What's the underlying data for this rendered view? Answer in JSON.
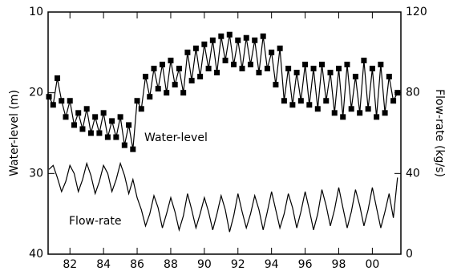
{
  "chart_data": {
    "type": "line",
    "y_label": "Water-level (m)",
    "y2_label": "Flow-rate (kg/s)",
    "annotations": [
      "Water-level",
      "Flow-rate"
    ],
    "xlim": [
      1980.7,
      2001.7
    ],
    "xticks": [
      {
        "value": 1982,
        "label": "82"
      },
      {
        "value": 1984,
        "label": "84"
      },
      {
        "value": 1986,
        "label": "86"
      },
      {
        "value": 1988,
        "label": "88"
      },
      {
        "value": 1990,
        "label": "90"
      },
      {
        "value": 1992,
        "label": "92"
      },
      {
        "value": 1994,
        "label": "94"
      },
      {
        "value": 1996,
        "label": "96"
      },
      {
        "value": 1998,
        "label": "98"
      },
      {
        "value": 2000,
        "label": "00"
      }
    ],
    "ylim": [
      40,
      10
    ],
    "yticks": [
      10,
      20,
      30,
      40
    ],
    "y2lim": [
      0,
      120
    ],
    "y2ticks": [
      0,
      40,
      80,
      120
    ],
    "x": [
      1980.75,
      1981,
      1981.25,
      1981.5,
      1981.75,
      1982,
      1982.25,
      1982.5,
      1982.75,
      1983,
      1983.25,
      1983.5,
      1983.75,
      1984,
      1984.25,
      1984.5,
      1984.75,
      1985,
      1985.25,
      1985.5,
      1985.75,
      1986,
      1986.25,
      1986.5,
      1986.75,
      1987,
      1987.25,
      1987.5,
      1987.75,
      1988,
      1988.25,
      1988.5,
      1988.75,
      1989,
      1989.25,
      1989.5,
      1989.75,
      1990,
      1990.25,
      1990.5,
      1990.75,
      1991,
      1991.25,
      1991.5,
      1991.75,
      1992,
      1992.25,
      1992.5,
      1992.75,
      1993,
      1993.25,
      1993.5,
      1993.75,
      1994,
      1994.25,
      1994.5,
      1994.75,
      1995,
      1995.25,
      1995.5,
      1995.75,
      1996,
      1996.25,
      1996.5,
      1996.75,
      1997,
      1997.25,
      1997.5,
      1997.75,
      1998,
      1998.25,
      1998.5,
      1998.75,
      1999,
      1999.25,
      1999.5,
      1999.75,
      2000,
      2000.25,
      2000.5,
      2000.75,
      2001,
      2001.25,
      2001.5
    ],
    "series": [
      {
        "name": "Water-level",
        "color": "#000000",
        "marker": "square",
        "values": [
          20.5,
          21.5,
          18.2,
          21,
          23,
          21,
          24,
          22.5,
          24.5,
          22,
          25,
          23,
          25,
          22.5,
          25.5,
          23.5,
          25.5,
          23,
          26.5,
          24,
          27,
          21,
          22,
          18,
          20.5,
          17,
          19.5,
          16.5,
          20,
          16,
          19,
          17,
          20,
          15,
          18.5,
          14.5,
          18,
          14,
          17,
          13.5,
          17.5,
          13,
          16,
          12.8,
          16.5,
          13.5,
          17,
          13.2,
          16.5,
          13.5,
          17.5,
          13,
          17,
          15,
          19,
          14.5,
          21,
          17,
          21.5,
          17.5,
          21,
          16.5,
          21.5,
          17,
          22,
          16.5,
          21,
          17.5,
          22.5,
          17,
          23,
          16.5,
          22,
          18,
          22.5,
          16,
          22,
          17,
          23,
          16.5,
          22.5,
          18,
          21,
          20
        ]
      },
      {
        "name": "Flow-rate",
        "color": "#000000",
        "axis": "y2",
        "values": [
          42,
          44,
          38,
          31,
          36,
          44,
          40,
          31,
          37,
          45,
          39,
          30,
          36,
          44,
          40,
          31,
          37,
          45,
          39,
          30,
          37,
          28,
          22,
          14,
          20,
          29,
          23,
          13,
          20,
          28,
          21,
          12,
          19,
          30,
          22,
          13,
          20,
          28,
          21,
          12,
          20,
          29,
          22,
          11,
          19,
          30,
          21,
          13,
          20,
          29,
          22,
          12,
          21,
          31,
          22,
          13,
          20,
          30,
          23,
          13,
          21,
          31,
          22,
          12,
          20,
          32,
          24,
          14,
          22,
          33,
          23,
          13,
          21,
          32,
          24,
          14,
          22,
          33,
          23,
          13,
          21,
          30,
          18,
          38
        ]
      }
    ]
  }
}
